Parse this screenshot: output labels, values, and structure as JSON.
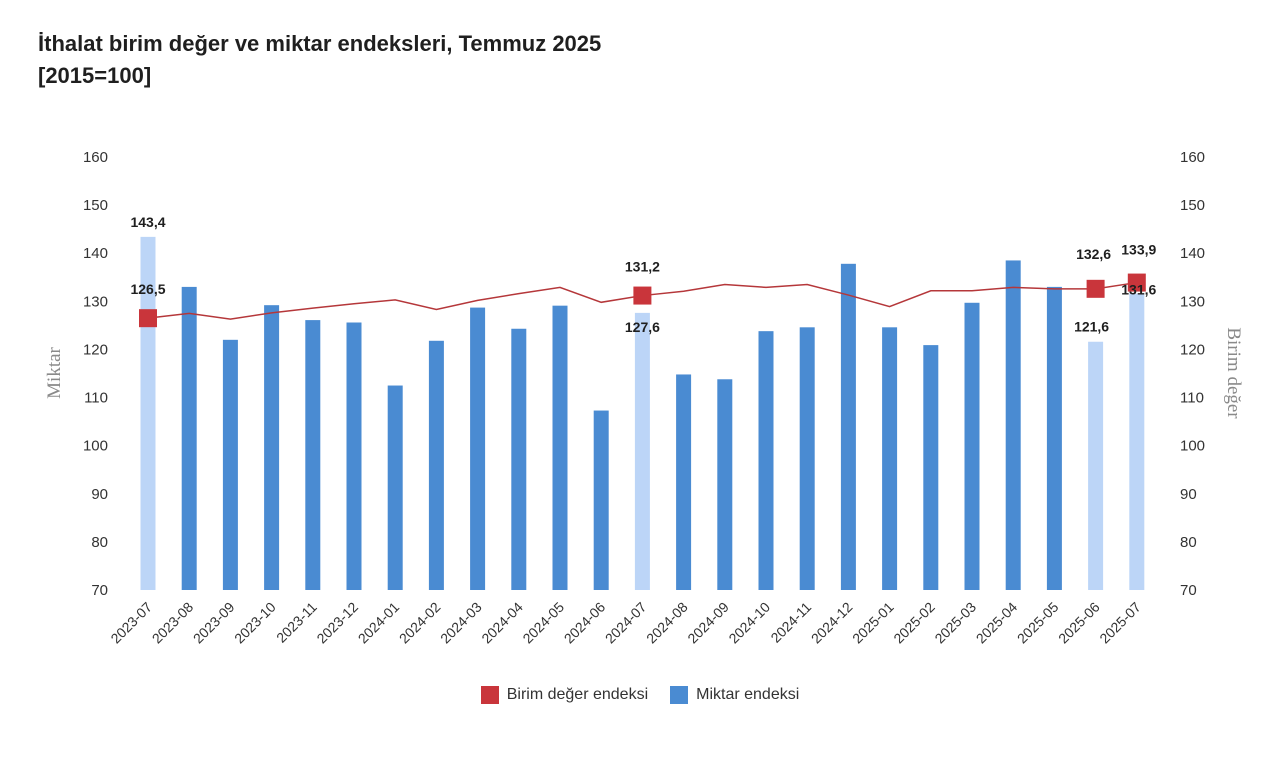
{
  "title": "İthalat birim değer ve miktar endeksleri, Temmuz 2025",
  "subtitle": "[2015=100]",
  "colors": {
    "bar": "#4a8bd2",
    "bar_highlight": "#bcd5f7",
    "line": "#b5373a",
    "marker": "#c9353b"
  },
  "chart_data": {
    "type": "bar+line",
    "categories": [
      "2023-07",
      "2023-08",
      "2023-09",
      "2023-10",
      "2023-11",
      "2023-12",
      "2024-01",
      "2024-02",
      "2024-03",
      "2024-04",
      "2024-05",
      "2024-06",
      "2024-07",
      "2024-08",
      "2024-09",
      "2024-10",
      "2024-11",
      "2024-12",
      "2025-01",
      "2025-02",
      "2025-03",
      "2025-04",
      "2025-05",
      "2025-06",
      "2025-07"
    ],
    "series": [
      {
        "name": "Miktar endeksi",
        "type": "bar",
        "axis": "left",
        "values": [
          143.4,
          133,
          122,
          129.2,
          126.1,
          125.6,
          112.5,
          121.8,
          128.7,
          124.3,
          129.1,
          107.3,
          127.6,
          114.8,
          113.8,
          123.8,
          124.6,
          137.8,
          124.6,
          120.9,
          129.7,
          138.5,
          133,
          121.6,
          131.6
        ],
        "highlighted": [
          "2023-07",
          "2024-07",
          "2025-06",
          "2025-07"
        ],
        "data_labels": {
          "2023-07": "143,4",
          "2024-07": "127,6",
          "2025-06": "121,6",
          "2025-07": "131,6"
        }
      },
      {
        "name": "Birim değer endeksi",
        "type": "line",
        "axis": "right",
        "values": [
          126.5,
          127.5,
          126.3,
          127.6,
          128.6,
          129.5,
          130.3,
          128.3,
          130.2,
          131.6,
          132.9,
          129.8,
          131.2,
          132.1,
          133.5,
          132.9,
          133.5,
          131.3,
          128.9,
          132.2,
          132.2,
          132.9,
          132.6,
          132.6,
          133.9
        ],
        "markers": [
          "2023-07",
          "2024-07",
          "2025-06",
          "2025-07"
        ],
        "data_labels": {
          "2023-07": "126,5",
          "2024-07": "131,2",
          "2025-06": "132,6",
          "2025-07": "133,9"
        }
      }
    ],
    "y_left": {
      "label": "Miktar",
      "lim": [
        70,
        160
      ],
      "ticks": [
        70,
        80,
        90,
        100,
        110,
        120,
        130,
        140,
        150,
        160
      ]
    },
    "y_right": {
      "label": "Birim değer",
      "lim": [
        70,
        160
      ],
      "ticks": [
        70,
        80,
        90,
        100,
        110,
        120,
        130,
        140,
        150,
        160
      ]
    },
    "grid": false,
    "legend": {
      "position": "bottom",
      "entries": [
        "Birim değer endeksi",
        "Miktar endeksi"
      ]
    }
  }
}
